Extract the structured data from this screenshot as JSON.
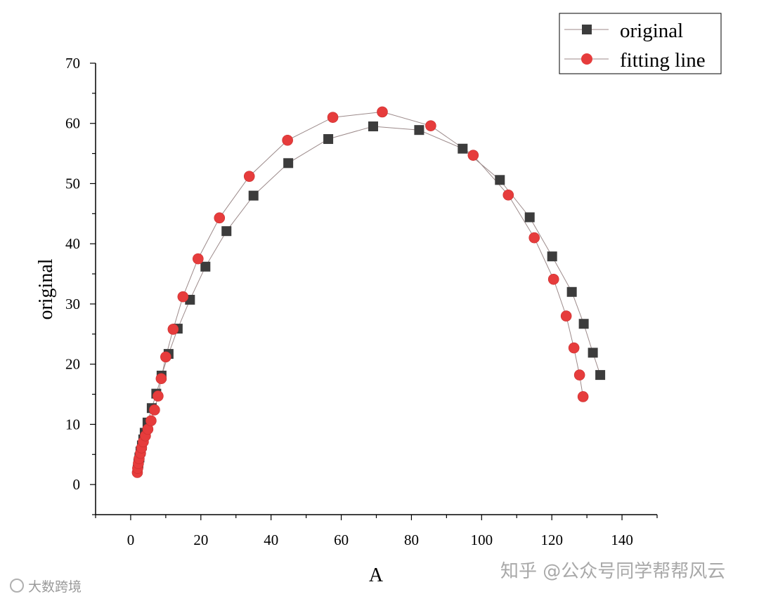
{
  "chart_data": {
    "type": "scatter",
    "xlabel": "A",
    "ylabel": "original",
    "xlim": [
      -10,
      150
    ],
    "ylim": [
      -5,
      70
    ],
    "x_ticks": [
      0,
      20,
      40,
      60,
      80,
      100,
      120,
      140
    ],
    "y_ticks": [
      0,
      10,
      20,
      30,
      40,
      50,
      60,
      70
    ],
    "grid": false,
    "legend_position": "top-right",
    "series": [
      {
        "name": "original",
        "marker": "square",
        "color": "#3c3c3c",
        "line_color": "#9c8a8a",
        "points": [
          [
            2.0,
            2.5
          ],
          [
            2.2,
            3.5
          ],
          [
            2.5,
            4.5
          ],
          [
            2.8,
            5.5
          ],
          [
            3.2,
            6.5
          ],
          [
            3.6,
            7.5
          ],
          [
            4.0,
            8.6
          ],
          [
            4.8,
            10.3
          ],
          [
            6.0,
            12.7
          ],
          [
            7.3,
            15.1
          ],
          [
            8.8,
            18.1
          ],
          [
            10.8,
            21.7
          ],
          [
            13.4,
            25.9
          ],
          [
            16.9,
            30.7
          ],
          [
            21.3,
            36.2
          ],
          [
            27.3,
            42.1
          ],
          [
            35.0,
            48.0
          ],
          [
            44.9,
            53.4
          ],
          [
            56.3,
            57.4
          ],
          [
            69.1,
            59.5
          ],
          [
            82.2,
            58.9
          ],
          [
            94.6,
            55.8
          ],
          [
            105.2,
            50.6
          ],
          [
            113.7,
            44.4
          ],
          [
            120.1,
            37.9
          ],
          [
            125.7,
            32.0
          ],
          [
            129.1,
            26.7
          ],
          [
            131.7,
            21.9
          ],
          [
            133.8,
            18.2
          ]
        ]
      },
      {
        "name": "fitting line",
        "marker": "circle",
        "color": "#e63c3c",
        "line_color": "#9c8a8a",
        "points": [
          [
            1.9,
            2.0
          ],
          [
            2.0,
            2.7
          ],
          [
            2.2,
            3.5
          ],
          [
            2.4,
            4.3
          ],
          [
            2.8,
            5.2
          ],
          [
            3.1,
            6.1
          ],
          [
            3.6,
            7.1
          ],
          [
            4.2,
            8.1
          ],
          [
            4.9,
            9.2
          ],
          [
            5.8,
            10.6
          ],
          [
            6.8,
            12.4
          ],
          [
            7.8,
            14.7
          ],
          [
            8.7,
            17.6
          ],
          [
            10.0,
            21.2
          ],
          [
            12.1,
            25.8
          ],
          [
            14.9,
            31.2
          ],
          [
            19.2,
            37.5
          ],
          [
            25.3,
            44.3
          ],
          [
            33.8,
            51.2
          ],
          [
            44.7,
            57.2
          ],
          [
            57.6,
            61.0
          ],
          [
            71.7,
            61.9
          ],
          [
            85.5,
            59.6
          ],
          [
            97.6,
            54.7
          ],
          [
            107.6,
            48.1
          ],
          [
            115.0,
            41.0
          ],
          [
            120.5,
            34.1
          ],
          [
            124.1,
            28.0
          ],
          [
            126.3,
            22.7
          ],
          [
            127.9,
            18.2
          ],
          [
            128.9,
            14.6
          ]
        ]
      }
    ]
  },
  "watermarks": {
    "bottom_left": "大数跨境",
    "bottom_right": "知乎 @公众号同学帮帮风云"
  }
}
